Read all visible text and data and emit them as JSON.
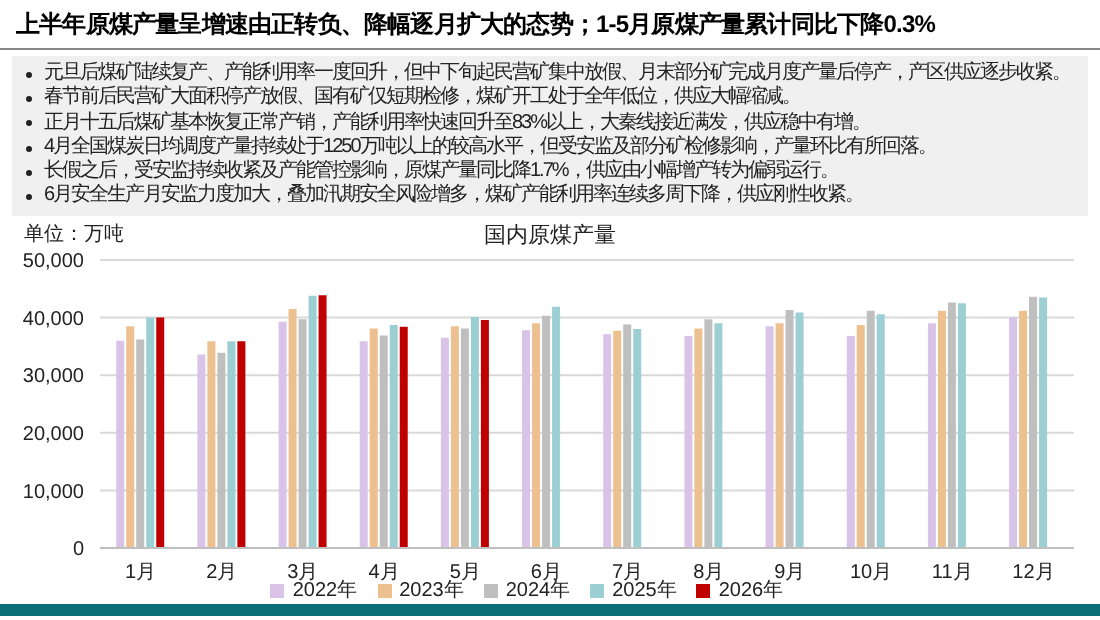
{
  "chart_data": {
    "type": "bar",
    "title": "上半年原煤产量呈增速由正转负、降幅逐月扩大的态势；1-5月原煤产量累计同比下降0.3%",
    "subtitle": "国内原煤产量",
    "ylabel": "单位：万吨",
    "annotations": [
      "元旦后煤矿陆续复产、产能利用率一度回升，但中下旬起民营矿集中放假、月末部分矿完成月度产量后停产，产区供应逐步收紧。",
      "春节前后民营矿大面积停产放假、国有矿仅短期检修，煤矿开工处于全年低位，供应大幅缩减。",
      "正月十五后煤矿基本恢复正常产销，产能利用率快速回升至83%以上，大秦线接近满发，供应稳中有增。",
      "4月全国煤炭日均调度产量持续处于1250万吨以上的较高水平，但受安监及部分矿检修影响，产量环比有所回落。",
      "长假之后，受安监持续收紧及产能管控影响，原煤产量同比降1.7%，供应由小幅增产转为偏弱运行。",
      "6月安全生产月安监力度加大，叠加汛期安全风险增多，煤矿产能利用率连续多周下降，供应刚性收紧。"
    ],
    "categories": [
      "1月",
      "2月",
      "3月",
      "4月",
      "5月",
      "6月",
      "7月",
      "8月",
      "9月",
      "10月",
      "11月",
      "12月"
    ],
    "series": [
      {
        "name": "2022年",
        "color": "#d9c3e9",
        "values": [
          36000,
          33600,
          39300,
          35900,
          36500,
          37800,
          37100,
          36800,
          38500,
          36800,
          39000,
          40000
        ]
      },
      {
        "name": "2023年",
        "color": "#ecc08f",
        "values": [
          38500,
          35900,
          41500,
          38100,
          38500,
          39000,
          37700,
          38100,
          39000,
          38700,
          41200,
          41200
        ]
      },
      {
        "name": "2024年",
        "color": "#bfbfbf",
        "values": [
          36200,
          33900,
          39700,
          36900,
          38100,
          40300,
          38800,
          39700,
          41300,
          41200,
          42600,
          43600
        ]
      },
      {
        "name": "2025年",
        "color": "#9ccfd3",
        "values": [
          40000,
          35900,
          43800,
          38700,
          40100,
          41900,
          38000,
          39000,
          40900,
          40600,
          42500,
          43500
        ]
      },
      {
        "name": "2026年",
        "color": "#c00000",
        "values": [
          40000,
          35900,
          43900,
          38400,
          39600,
          null,
          null,
          null,
          null,
          null,
          null,
          null
        ]
      }
    ],
    "ylim": [
      0,
      50000
    ],
    "yticks": [
      {
        "value": 0,
        "label": "0"
      },
      {
        "value": 10000,
        "label": "10,000"
      },
      {
        "value": 20000,
        "label": "20,000"
      },
      {
        "value": 30000,
        "label": "30,000"
      },
      {
        "value": 40000,
        "label": "40,000"
      },
      {
        "value": 50000,
        "label": "50,000"
      }
    ],
    "grid": "y",
    "legend": "bottom"
  }
}
